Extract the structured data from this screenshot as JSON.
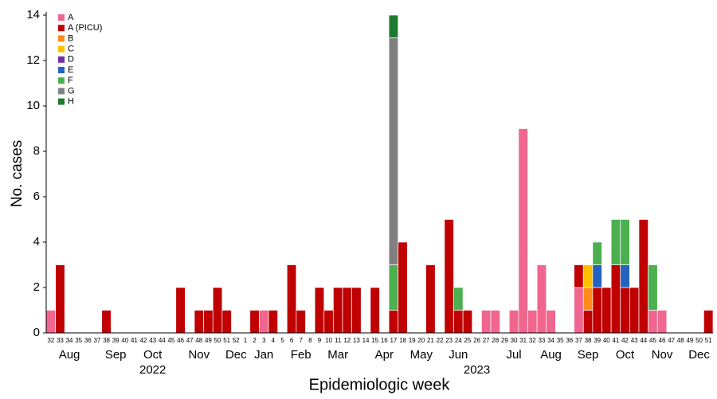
{
  "chart_data": {
    "type": "stacked-bar",
    "xlabel": "Epidemiologic week",
    "ylabel": "No. cases",
    "categories": [
      "32",
      "33",
      "34",
      "35",
      "36",
      "37",
      "38",
      "39",
      "40",
      "41",
      "42",
      "43",
      "44",
      "45",
      "46",
      "47",
      "48",
      "49",
      "50",
      "51",
      "52",
      "1",
      "2",
      "3",
      "4",
      "5",
      "6",
      "7",
      "8",
      "9",
      "10",
      "11",
      "12",
      "13",
      "14",
      "15",
      "16",
      "17",
      "18",
      "19",
      "20",
      "21",
      "22",
      "23",
      "24",
      "25",
      "26",
      "27",
      "28",
      "29",
      "30",
      "31",
      "32",
      "33",
      "34",
      "35",
      "36",
      "37",
      "38",
      "39",
      "40",
      "41",
      "42",
      "43",
      "44",
      "45",
      "46",
      "47",
      "48",
      "49",
      "50",
      "51"
    ],
    "month_labels": [
      null,
      null,
      "Aug",
      null,
      null,
      null,
      null,
      "Sep",
      null,
      null,
      null,
      "Oct",
      null,
      null,
      null,
      null,
      "Nov",
      null,
      null,
      null,
      "Dec",
      null,
      null,
      "Jan",
      null,
      null,
      null,
      "Feb",
      null,
      null,
      null,
      "Mar",
      null,
      null,
      null,
      null,
      "Apr",
      null,
      null,
      null,
      "May",
      null,
      null,
      null,
      "Jun",
      null,
      null,
      null,
      null,
      null,
      "Jul",
      null,
      null,
      null,
      "Aug",
      null,
      null,
      null,
      "Sep",
      null,
      null,
      null,
      "Oct",
      null,
      null,
      null,
      "Nov",
      null,
      null,
      null,
      "Dec",
      null
    ],
    "year_labels": [
      null,
      null,
      null,
      null,
      null,
      null,
      null,
      null,
      null,
      null,
      null,
      "2022",
      null,
      null,
      null,
      null,
      null,
      null,
      null,
      null,
      null,
      null,
      null,
      null,
      null,
      null,
      null,
      null,
      null,
      null,
      null,
      null,
      null,
      null,
      null,
      null,
      null,
      null,
      null,
      null,
      null,
      null,
      null,
      null,
      null,
      null,
      "2023",
      null,
      null,
      null,
      null,
      null,
      null,
      null,
      null,
      null,
      null,
      null,
      null,
      null,
      null,
      null,
      null,
      null,
      null,
      null,
      null,
      null,
      null,
      null,
      null,
      null
    ],
    "ylim": [
      0,
      14
    ],
    "yticks": [
      0,
      2,
      4,
      6,
      8,
      10,
      12,
      14
    ],
    "series": [
      {
        "name": "A",
        "color": "#f0668e",
        "values": [
          1,
          0,
          0,
          0,
          0,
          0,
          0,
          0,
          0,
          0,
          0,
          0,
          0,
          0,
          0,
          0,
          0,
          0,
          0,
          0,
          0,
          0,
          0,
          1,
          0,
          0,
          0,
          0,
          0,
          0,
          0,
          0,
          0,
          0,
          0,
          0,
          0,
          0,
          0,
          0,
          0,
          0,
          0,
          0,
          0,
          0,
          0,
          1,
          1,
          0,
          1,
          9,
          1,
          3,
          1,
          0,
          0,
          2,
          0,
          0,
          0,
          0,
          0,
          0,
          0,
          1,
          1,
          0,
          0,
          0,
          0,
          0
        ]
      },
      {
        "name": "A (PICU)",
        "color": "#c00000",
        "values": [
          0,
          3,
          0,
          0,
          0,
          0,
          1,
          0,
          0,
          0,
          0,
          0,
          0,
          0,
          2,
          0,
          1,
          1,
          2,
          1,
          0,
          0,
          1,
          0,
          1,
          0,
          3,
          1,
          0,
          2,
          1,
          2,
          2,
          2,
          0,
          2,
          0,
          1,
          4,
          0,
          0,
          3,
          0,
          5,
          1,
          1,
          0,
          0,
          0,
          0,
          0,
          0,
          0,
          0,
          0,
          0,
          0,
          1,
          1,
          2,
          2,
          3,
          2,
          2,
          5,
          0,
          0,
          0,
          0,
          0,
          0,
          1
        ]
      },
      {
        "name": "B",
        "color": "#ff8c1a",
        "values": [
          0,
          0,
          0,
          0,
          0,
          0,
          0,
          0,
          0,
          0,
          0,
          0,
          0,
          0,
          0,
          0,
          0,
          0,
          0,
          0,
          0,
          0,
          0,
          0,
          0,
          0,
          0,
          0,
          0,
          0,
          0,
          0,
          0,
          0,
          0,
          0,
          0,
          0,
          0,
          0,
          0,
          0,
          0,
          0,
          0,
          0,
          0,
          0,
          0,
          0,
          0,
          0,
          0,
          0,
          0,
          0,
          0,
          0,
          1,
          0,
          0,
          0,
          0,
          0,
          0,
          0,
          0,
          0,
          0,
          0,
          0,
          0
        ]
      },
      {
        "name": "C",
        "color": "#ffc000",
        "values": [
          0,
          0,
          0,
          0,
          0,
          0,
          0,
          0,
          0,
          0,
          0,
          0,
          0,
          0,
          0,
          0,
          0,
          0,
          0,
          0,
          0,
          0,
          0,
          0,
          0,
          0,
          0,
          0,
          0,
          0,
          0,
          0,
          0,
          0,
          0,
          0,
          0,
          0,
          0,
          0,
          0,
          0,
          0,
          0,
          0,
          0,
          0,
          0,
          0,
          0,
          0,
          0,
          0,
          0,
          0,
          0,
          0,
          0,
          1,
          0,
          0,
          0,
          0,
          0,
          0,
          0,
          0,
          0,
          0,
          0,
          0,
          0
        ]
      },
      {
        "name": "D",
        "color": "#7030a0",
        "values": [
          0,
          0,
          0,
          0,
          0,
          0,
          0,
          0,
          0,
          0,
          0,
          0,
          0,
          0,
          0,
          0,
          0,
          0,
          0,
          0,
          0,
          0,
          0,
          0,
          0,
          0,
          0,
          0,
          0,
          0,
          0,
          0,
          0,
          0,
          0,
          0,
          0,
          0,
          0,
          0,
          0,
          0,
          0,
          0,
          0,
          0,
          0,
          0,
          0,
          0,
          0,
          0,
          0,
          0,
          0,
          0,
          0,
          0,
          0,
          0,
          0,
          0,
          0,
          0,
          0,
          0,
          0,
          0,
          0,
          0,
          0,
          0
        ]
      },
      {
        "name": "E",
        "color": "#2262c0",
        "values": [
          0,
          0,
          0,
          0,
          0,
          0,
          0,
          0,
          0,
          0,
          0,
          0,
          0,
          0,
          0,
          0,
          0,
          0,
          0,
          0,
          0,
          0,
          0,
          0,
          0,
          0,
          0,
          0,
          0,
          0,
          0,
          0,
          0,
          0,
          0,
          0,
          0,
          0,
          0,
          0,
          0,
          0,
          0,
          0,
          0,
          0,
          0,
          0,
          0,
          0,
          0,
          0,
          0,
          0,
          0,
          0,
          0,
          0,
          0,
          1,
          0,
          0,
          1,
          0,
          0,
          0,
          0,
          0,
          0,
          0,
          0,
          0
        ]
      },
      {
        "name": "F",
        "color": "#4cb050",
        "values": [
          0,
          0,
          0,
          0,
          0,
          0,
          0,
          0,
          0,
          0,
          0,
          0,
          0,
          0,
          0,
          0,
          0,
          0,
          0,
          0,
          0,
          0,
          0,
          0,
          0,
          0,
          0,
          0,
          0,
          0,
          0,
          0,
          0,
          0,
          0,
          0,
          0,
          2,
          0,
          0,
          0,
          0,
          0,
          0,
          1,
          0,
          0,
          0,
          0,
          0,
          0,
          0,
          0,
          0,
          0,
          0,
          0,
          0,
          0,
          1,
          0,
          2,
          2,
          0,
          0,
          2,
          0,
          0,
          0,
          0,
          0,
          0
        ]
      },
      {
        "name": "G",
        "color": "#808080",
        "values": [
          0,
          0,
          0,
          0,
          0,
          0,
          0,
          0,
          0,
          0,
          0,
          0,
          0,
          0,
          0,
          0,
          0,
          0,
          0,
          0,
          0,
          0,
          0,
          0,
          0,
          0,
          0,
          0,
          0,
          0,
          0,
          0,
          0,
          0,
          0,
          0,
          0,
          10,
          0,
          0,
          0,
          0,
          0,
          0,
          0,
          0,
          0,
          0,
          0,
          0,
          0,
          0,
          0,
          0,
          0,
          0,
          0,
          0,
          0,
          0,
          0,
          0,
          0,
          0,
          0,
          0,
          0,
          0,
          0,
          0,
          0,
          0
        ]
      },
      {
        "name": "H",
        "color": "#1e7a30",
        "values": [
          0,
          0,
          0,
          0,
          0,
          0,
          0,
          0,
          0,
          0,
          0,
          0,
          0,
          0,
          0,
          0,
          0,
          0,
          0,
          0,
          0,
          0,
          0,
          0,
          0,
          0,
          0,
          0,
          0,
          0,
          0,
          0,
          0,
          0,
          0,
          0,
          0,
          1,
          0,
          0,
          0,
          0,
          0,
          0,
          0,
          0,
          0,
          0,
          0,
          0,
          0,
          0,
          0,
          0,
          0,
          0,
          0,
          0,
          0,
          0,
          0,
          0,
          0,
          0,
          0,
          0,
          0,
          0,
          0,
          0,
          0,
          0
        ]
      }
    ]
  }
}
